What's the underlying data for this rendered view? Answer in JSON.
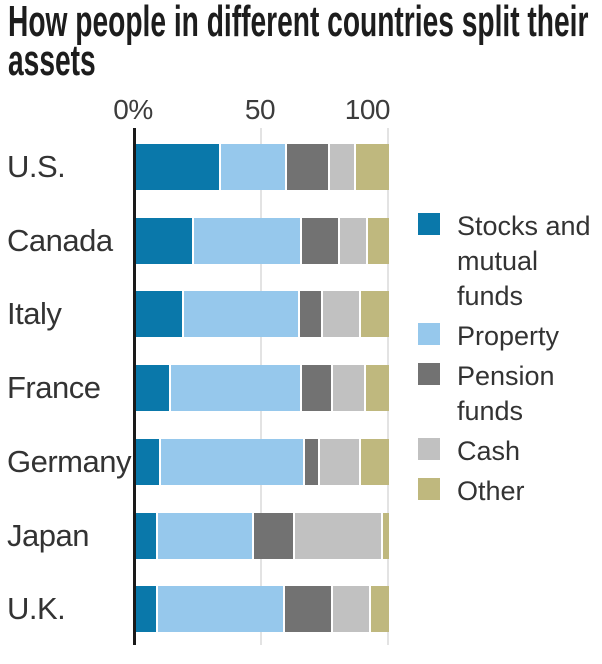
{
  "title": {
    "text": "How people in different countries split their assets",
    "line1": "How people in different countries split their",
    "line2": "assets"
  },
  "axis": {
    "tick_labels": [
      "0%",
      "50",
      "100"
    ],
    "tick_values": [
      0,
      50,
      100
    ]
  },
  "chart_data": {
    "type": "bar",
    "stacked": true,
    "orientation": "horizontal",
    "title": "How people in different countries split their assets",
    "categories": [
      "U.S.",
      "Canada",
      "Italy",
      "France",
      "Germany",
      "Japan",
      "U.K."
    ],
    "series": [
      {
        "name": "Stocks and mutual funds",
        "color": "#0a78aa",
        "values": [
          33,
          22,
          18,
          13,
          9,
          8,
          8
        ]
      },
      {
        "name": "Property",
        "color": "#96c8ec",
        "values": [
          26,
          43,
          46,
          52,
          57,
          38,
          50
        ]
      },
      {
        "name": "Pension funds",
        "color": "#727272",
        "values": [
          17,
          15,
          9,
          12,
          6,
          16,
          19
        ]
      },
      {
        "name": "Cash",
        "color": "#c1c1c1",
        "values": [
          10,
          11,
          15,
          13,
          16,
          35,
          15
        ]
      },
      {
        "name": "Other",
        "color": "#bfb87e",
        "values": [
          14,
          9,
          12,
          10,
          12,
          3,
          8
        ]
      }
    ],
    "xlim": [
      0,
      100
    ],
    "unit": "%",
    "grid": true,
    "legend_position": "right",
    "colors": {
      "axis_line": "#1a1a1a",
      "gridline": "#e3e3e3",
      "label_text": "#333333",
      "background": "#ffffff"
    }
  }
}
